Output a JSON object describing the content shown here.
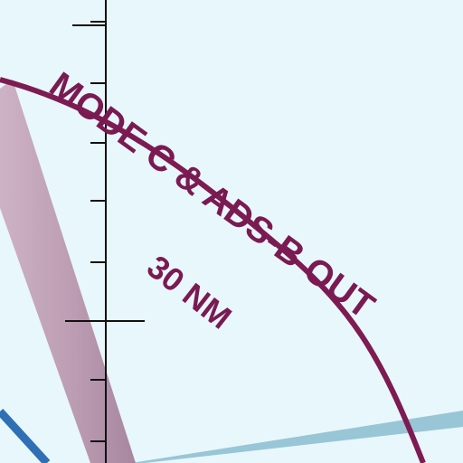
{
  "map": {
    "mode_c_label": "MODE C & ADS-B OUT",
    "radius_label": "30 NM",
    "colors": {
      "background": "#e8f7fb",
      "mode_c_arc": "#7d1b52",
      "restricted_band": "#b78fa8",
      "airway_light": "#8fc0d2",
      "airway_dark": "#2f6fb5",
      "tick_line": "#111111"
    }
  }
}
